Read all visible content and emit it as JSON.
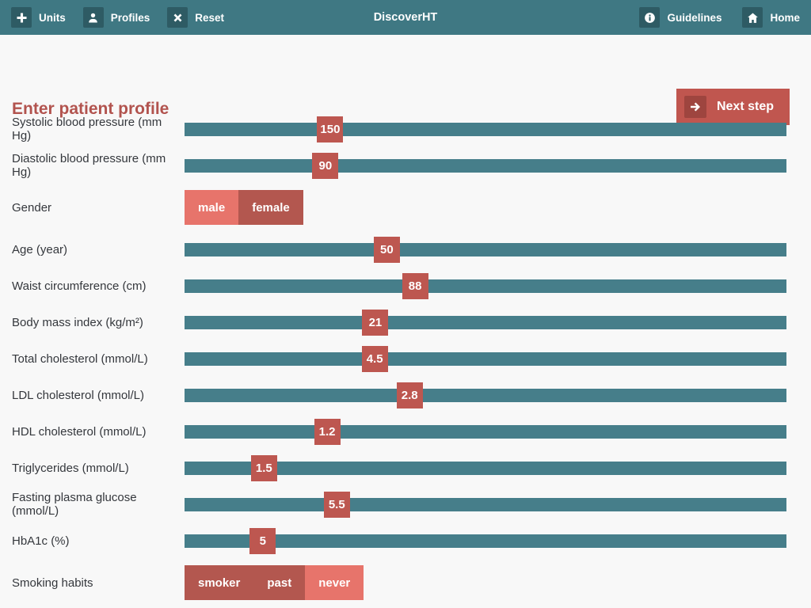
{
  "header": {
    "title": "DiscoverHT",
    "left_items": [
      {
        "label": "Units",
        "icon": "plus-icon"
      },
      {
        "label": "Profiles",
        "icon": "person-icon"
      },
      {
        "label": "Reset",
        "icon": "x-icon"
      }
    ],
    "right_items": [
      {
        "label": "Guidelines",
        "icon": "info-icon"
      },
      {
        "label": "Home",
        "icon": "home-icon"
      }
    ]
  },
  "page": {
    "title": "Enter patient profile",
    "next_step_label": "Next step",
    "next_step_icon": "arrow-right-icon"
  },
  "colors": {
    "header_bg": "#3f7883",
    "header_icon_bg": "#2e5b64",
    "page_bg": "#f8f8f8",
    "title_red": "#b2534e",
    "button_red": "#c0564f",
    "track_teal": "#467e8a",
    "handle_red": "#bd5750",
    "selected_salmon": "#e7746b",
    "unselected_brick": "#b3574f"
  },
  "rows": [
    {
      "type": "slider",
      "label": "Systolic blood pressure (mm Hg)",
      "value": "150",
      "position_pct": 24.2
    },
    {
      "type": "slider",
      "label": "Diastolic blood pressure (mm Hg)",
      "value": "90",
      "position_pct": 23.4
    },
    {
      "type": "choice",
      "label": "Gender",
      "options": [
        {
          "label": "male",
          "selected": true
        },
        {
          "label": "female",
          "selected": false
        }
      ]
    },
    {
      "type": "slider",
      "label": "Age (year)",
      "value": "50",
      "position_pct": 33.6
    },
    {
      "type": "slider",
      "label": "Waist circumference (cm)",
      "value": "88",
      "position_pct": 38.3
    },
    {
      "type": "slider",
      "label": "Body mass index (kg/m²)",
      "value": "21",
      "position_pct": 31.7
    },
    {
      "type": "slider",
      "label": "Total cholesterol (mmol/L)",
      "value": "4.5",
      "position_pct": 31.6
    },
    {
      "type": "slider",
      "label": "LDL cholesterol (mmol/L)",
      "value": "2.8",
      "position_pct": 37.4
    },
    {
      "type": "slider",
      "label": "HDL cholesterol (mmol/L)",
      "value": "1.2",
      "position_pct": 23.7
    },
    {
      "type": "slider",
      "label": "Triglycerides (mmol/L)",
      "value": "1.5",
      "position_pct": 13.2
    },
    {
      "type": "slider",
      "label": "Fasting plasma glucose (mmol/L)",
      "value": "5.5",
      "position_pct": 25.3
    },
    {
      "type": "slider",
      "label": "HbA1c (%)",
      "value": "5",
      "position_pct": 13.0
    },
    {
      "type": "choice",
      "label": "Smoking habits",
      "options": [
        {
          "label": "smoker",
          "selected": false
        },
        {
          "label": "past",
          "selected": false
        },
        {
          "label": "never",
          "selected": true
        }
      ]
    }
  ]
}
